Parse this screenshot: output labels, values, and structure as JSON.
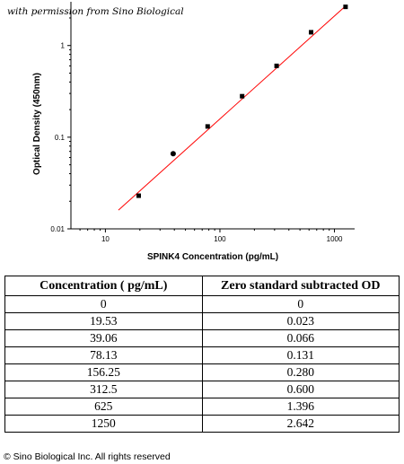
{
  "watermark": "with permission from Sino Biological",
  "chart_data": {
    "type": "scatter",
    "xlabel": "SPINK4 Concentration (pg/mL)",
    "ylabel": "Optical Density (450nm)",
    "xscale": "log",
    "yscale": "log",
    "xlim": [
      5,
      1500
    ],
    "ylim": [
      0.01,
      3
    ],
    "xticks": [
      10,
      100,
      1000
    ],
    "xtick_labels": [
      "10",
      "100",
      "1000"
    ],
    "yticks": [
      0.01,
      0.1,
      1
    ],
    "ytick_labels": [
      "0.01",
      "0.1",
      "1"
    ],
    "grid": false,
    "series": [
      {
        "x": [
          19.53,
          39.06,
          78.13,
          156.25,
          312.5,
          625,
          1250
        ],
        "y": [
          0.023,
          0.066,
          0.131,
          0.28,
          0.6,
          1.396,
          2.642
        ]
      }
    ],
    "fit_line": {
      "x": [
        13,
        1250
      ],
      "y": [
        0.016,
        2.7
      ],
      "color": "#ff0000"
    }
  },
  "table": {
    "headers": [
      "Concentration ( pg/mL)",
      "Zero standard subtracted OD"
    ],
    "rows": [
      [
        "0",
        "0"
      ],
      [
        "19.53",
        "0.023"
      ],
      [
        "39.06",
        "0.066"
      ],
      [
        "78.13",
        "0.131"
      ],
      [
        "156.25",
        "0.280"
      ],
      [
        "312.5",
        "0.600"
      ],
      [
        "625",
        "1.396"
      ],
      [
        "1250",
        "2.642"
      ]
    ]
  },
  "copyright": "© Sino Biological Inc. All rights reserved"
}
